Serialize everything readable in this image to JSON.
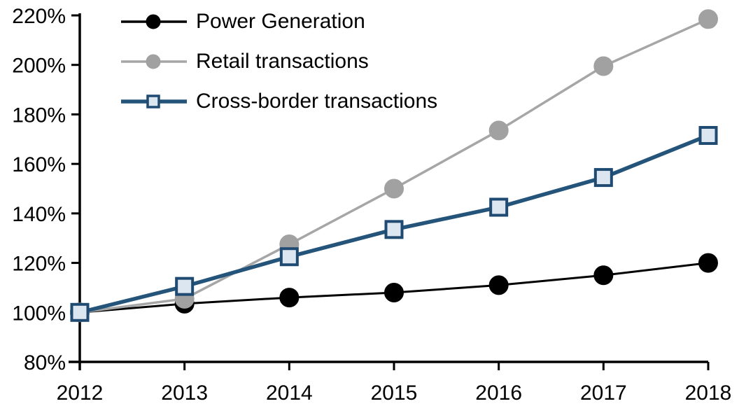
{
  "chart_data": {
    "type": "line",
    "title": "",
    "xlabel": "",
    "ylabel": "",
    "grid": false,
    "legend_position": "top-left",
    "x": [
      2012,
      2013,
      2014,
      2015,
      2016,
      2017,
      2018
    ],
    "xtick_labels": [
      "2012",
      "2013",
      "2014",
      "2015",
      "2016",
      "2017",
      "2018"
    ],
    "ylim": [
      80,
      220
    ],
    "ytick_step": 20,
    "ytick_labels": [
      "80%",
      "100%",
      "120%",
      "140%",
      "160%",
      "180%",
      "200%",
      "220%"
    ],
    "series": [
      {
        "name": "Power Generation",
        "values": [
          100,
          103.5,
          106,
          108,
          111,
          115,
          120
        ],
        "line_color": "#000000",
        "line_width": 3,
        "marker": "circle",
        "marker_fill": "#000000",
        "marker_stroke": "#000000"
      },
      {
        "name": "Retail transactions",
        "values": [
          100,
          105.5,
          127.5,
          150,
          173.5,
          199.5,
          218.5
        ],
        "line_color": "#A6A6A6",
        "line_width": 3.5,
        "marker": "circle",
        "marker_fill": "#A1A1A1",
        "marker_stroke": "#A1A1A1"
      },
      {
        "name": "Cross-border transactions",
        "values": [
          100,
          110.5,
          122.5,
          133.5,
          142.5,
          154.5,
          171.5
        ],
        "line_color": "#24547A",
        "line_width": 5.5,
        "marker": "square",
        "marker_fill": "#DCE6F1",
        "marker_stroke": "#1F4A72"
      }
    ],
    "axis_color": "#000000"
  }
}
